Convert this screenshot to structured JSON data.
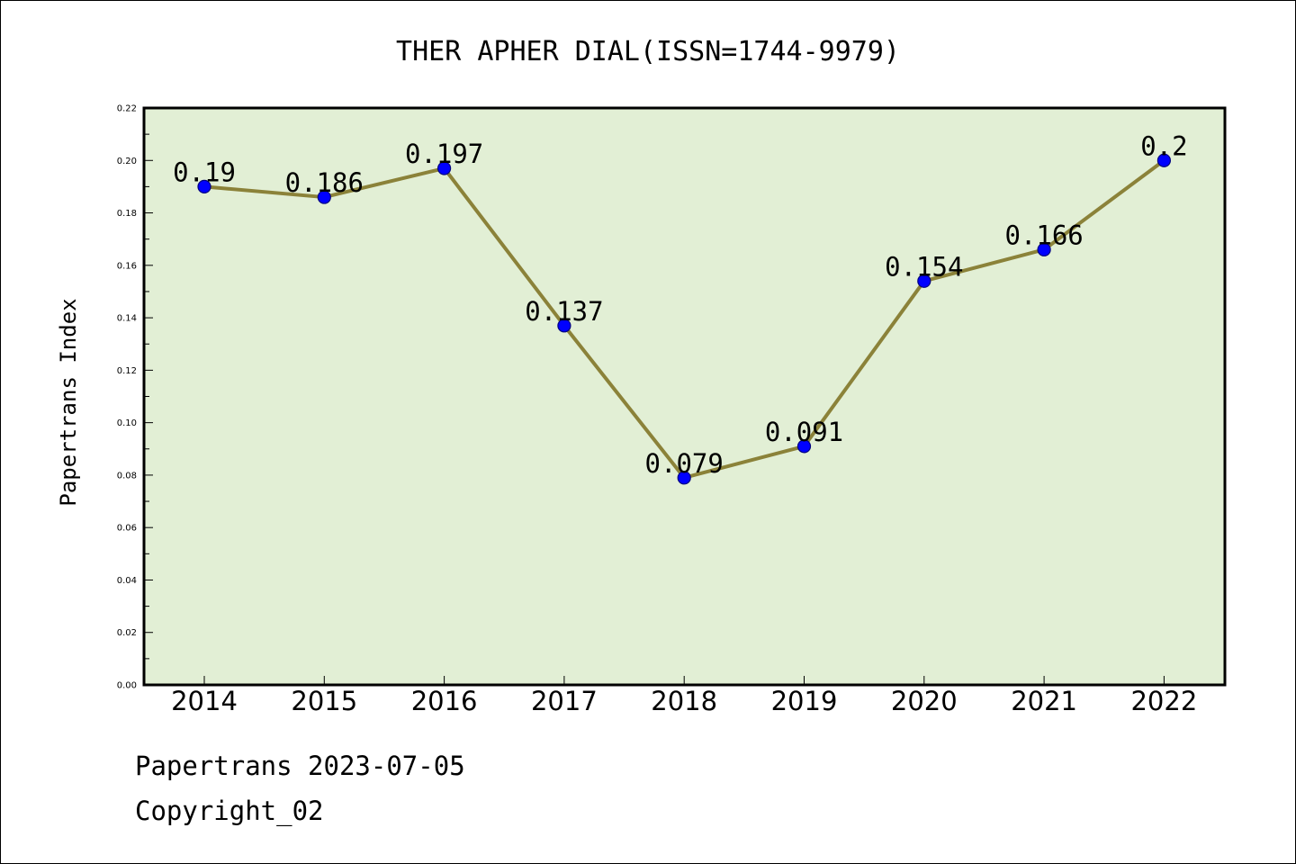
{
  "chart_data": {
    "type": "line",
    "title": "THER APHER DIAL(ISSN=1744-9979)",
    "xlabel": "",
    "ylabel": "Papertrans Index",
    "categories": [
      "2014",
      "2015",
      "2016",
      "2017",
      "2018",
      "2019",
      "2020",
      "2021",
      "2022"
    ],
    "values": [
      0.19,
      0.186,
      0.197,
      0.137,
      0.079,
      0.091,
      0.154,
      0.166,
      0.2
    ],
    "data_labels": [
      "0.19",
      "0.186",
      "0.197",
      "0.137",
      "0.079",
      "0.091",
      "0.154",
      "0.166",
      "0.2"
    ],
    "ylim": [
      0,
      0.22
    ],
    "yticks": [
      0.0,
      0.02,
      0.04,
      0.06,
      0.08,
      0.1,
      0.12,
      0.14,
      0.16,
      0.18,
      0.2,
      0.22
    ],
    "ytick_labels": [
      "0.00",
      "0.02",
      "0.04",
      "0.06",
      "0.08",
      "0.10",
      "0.12",
      "0.14",
      "0.16",
      "0.18",
      "0.20",
      "0.22"
    ],
    "grid": false,
    "legend": "none",
    "colors": {
      "line": "#8b8239",
      "marker": "#0000ff",
      "marker_edge": "#000080",
      "plot_background": "#e2efd5",
      "axis": "#000000"
    }
  },
  "footer": {
    "date_text": "Papertrans 2023-07-05",
    "copyright_text": "Copyright_02"
  }
}
